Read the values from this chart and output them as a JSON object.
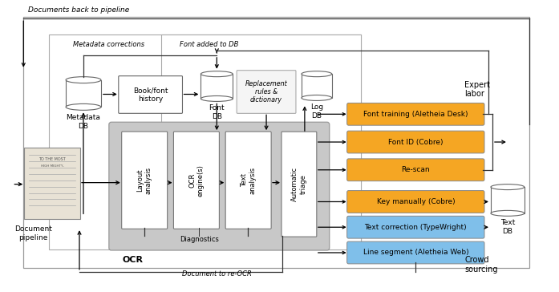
{
  "bg_color": "#ffffff",
  "doc_back_label": "Documents back to pipeline",
  "metadata_corrections_label": "Metadata corrections",
  "font_added_label": "Font added to DB",
  "doc_reocr_label": "Document to re-OCR",
  "ocr_label": "OCR",
  "expert_labor_label": "Expert\nlabor",
  "crowd_sourcing_label": "Crowd\nsourcing",
  "diagnostics_label": "Diagnostics",
  "orange_color": "#f5a623",
  "blue_color": "#7fbfea",
  "gray_color": "#b0b0b0",
  "light_gray": "#d0d0d0",
  "white": "#ffffff",
  "edge_color": "#666666",
  "edge_color2": "#999999"
}
